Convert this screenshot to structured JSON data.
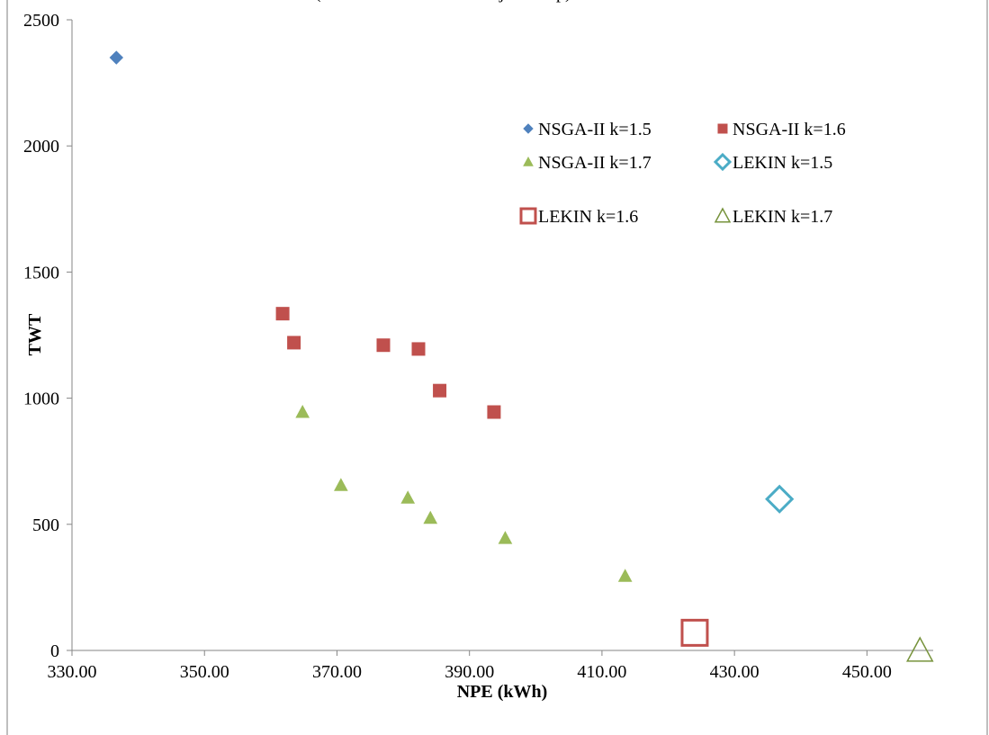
{
  "chart_data": {
    "type": "scatter",
    "title": "(",
    "title_suffix": "j",
    "title_suffix2": "p)",
    "xlabel": "NPE (kWh)",
    "ylabel": "TWT",
    "xlim": [
      330,
      460
    ],
    "ylim": [
      0,
      2500
    ],
    "x_ticks": [
      "330.00",
      "350.00",
      "370.00",
      "390.00",
      "410.00",
      "430.00",
      "450.00"
    ],
    "x_tick_values": [
      330,
      350,
      370,
      390,
      410,
      430,
      450
    ],
    "y_ticks": [
      "0",
      "500",
      "1000",
      "1500",
      "2000",
      "2500"
    ],
    "y_tick_values": [
      0,
      500,
      1000,
      1500,
      2000,
      2500
    ],
    "grid": false,
    "legend_position": "top-right",
    "series": [
      {
        "name": "NSGA-II k=1.5",
        "marker": "diamond-filled",
        "color": "#4F81BD",
        "points": [
          [
            336.7,
            2350
          ]
        ]
      },
      {
        "name": "NSGA-II k=1.6",
        "marker": "square-filled",
        "color": "#C0504D",
        "points": [
          [
            361.8,
            1335
          ],
          [
            363.5,
            1220
          ],
          [
            377.0,
            1210
          ],
          [
            382.3,
            1195
          ],
          [
            385.5,
            1030
          ],
          [
            393.7,
            945
          ]
        ]
      },
      {
        "name": "NSGA-II k=1.7",
        "marker": "triangle-filled",
        "color": "#9BBB59",
        "points": [
          [
            364.8,
            945
          ],
          [
            370.6,
            655
          ],
          [
            380.7,
            605
          ],
          [
            384.1,
            525
          ],
          [
            395.4,
            445
          ],
          [
            413.5,
            295
          ]
        ]
      },
      {
        "name": "LEKIN k=1.5",
        "marker": "diamond-open",
        "color": "#4BACC6",
        "points": [
          [
            436.8,
            600
          ]
        ]
      },
      {
        "name": "LEKIN k=1.6",
        "marker": "square-open",
        "color": "#C0504D",
        "points": [
          [
            424.0,
            70
          ]
        ]
      },
      {
        "name": "LEKIN k=1.7",
        "marker": "triangle-open",
        "color": "#77933C",
        "points": [
          [
            458.0,
            0
          ]
        ]
      }
    ]
  }
}
